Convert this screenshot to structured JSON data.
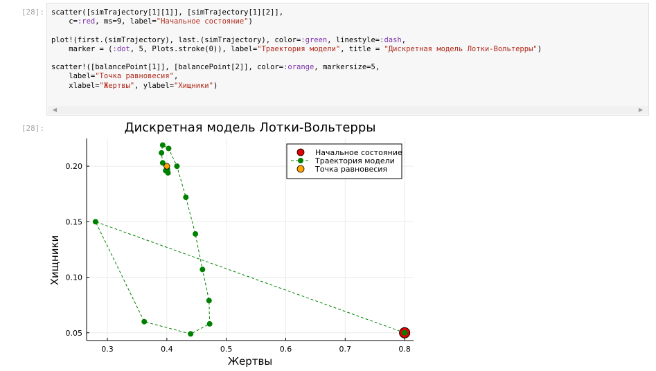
{
  "input_cell": {
    "prompt": "[28]:",
    "lines": [
      [
        {
          "t": "scatter([simTrajectory[1][1]], [simTrajectory[1][2]],"
        }
      ],
      [
        {
          "t": "    c="
        },
        {
          "t": ":red",
          "c": "sym"
        },
        {
          "t": ", ms=9, label="
        },
        {
          "t": "\"Начальное состояние\"",
          "c": "s"
        },
        {
          "t": ")"
        }
      ],
      [
        {
          "t": ""
        }
      ],
      [
        {
          "t": "plot!(first.(simTrajectory), last.(simTrajectory), color="
        },
        {
          "t": ":green",
          "c": "sym"
        },
        {
          "t": ", linestyle="
        },
        {
          "t": ":dash",
          "c": "sym"
        },
        {
          "t": ","
        }
      ],
      [
        {
          "t": "    marker = ("
        },
        {
          "t": ":dot",
          "c": "sym"
        },
        {
          "t": ", 5, Plots.stroke(0)), label="
        },
        {
          "t": "\"Траектория модели\"",
          "c": "s"
        },
        {
          "t": ", title = "
        },
        {
          "t": "\"Дискретная модель Лотки-Вольтерры\"",
          "c": "s"
        },
        {
          "t": ")"
        }
      ],
      [
        {
          "t": ""
        }
      ],
      [
        {
          "t": "scatter!([balancePoint[1]], [balancePoint[2]], color="
        },
        {
          "t": ":orange",
          "c": "sym"
        },
        {
          "t": ", markersize=5,"
        }
      ],
      [
        {
          "t": "    label="
        },
        {
          "t": "\"Точка равновесия\"",
          "c": "s"
        },
        {
          "t": ","
        }
      ],
      [
        {
          "t": "    xlabel="
        },
        {
          "t": "\"Жертвы\"",
          "c": "s"
        },
        {
          "t": ", ylabel="
        },
        {
          "t": "\"Хищники\"",
          "c": "s"
        },
        {
          "t": ")"
        }
      ]
    ]
  },
  "output_cell": {
    "prompt": "[28]:"
  },
  "scrollbar": {
    "left_icon": "triangle-left-icon",
    "right_icon": "triangle-right-icon"
  },
  "chart_data": {
    "type": "scatter",
    "title": "Дискретная модель Лотки-Вольтерры",
    "xlabel": "Жертвы",
    "ylabel": "Хищники",
    "xlim": [
      0.265,
      0.815
    ],
    "ylim": [
      0.043,
      0.225
    ],
    "xticks": [
      0.3,
      0.4,
      0.5,
      0.6,
      0.7,
      0.8
    ],
    "yticks": [
      0.05,
      0.1,
      0.15,
      0.2
    ],
    "grid": true,
    "legend_position": "top-right",
    "series": [
      {
        "name": "Начальное состояние",
        "color": "#e10000",
        "marker": "circle",
        "line": "none",
        "points": [
          [
            0.8,
            0.05
          ]
        ]
      },
      {
        "name": "Траектория модели",
        "color": "#008000",
        "marker": "dot",
        "line": "dashed",
        "points": [
          [
            0.8,
            0.05
          ],
          [
            0.28,
            0.15
          ],
          [
            0.362,
            0.06
          ],
          [
            0.44,
            0.049
          ],
          [
            0.472,
            0.058
          ],
          [
            0.471,
            0.079
          ],
          [
            0.46,
            0.107
          ],
          [
            0.448,
            0.139
          ],
          [
            0.432,
            0.172
          ],
          [
            0.417,
            0.2
          ],
          [
            0.403,
            0.216
          ],
          [
            0.393,
            0.219
          ],
          [
            0.391,
            0.212
          ],
          [
            0.393,
            0.203
          ],
          [
            0.398,
            0.196
          ],
          [
            0.402,
            0.194
          ],
          [
            0.401,
            0.197
          ],
          [
            0.4,
            0.2
          ]
        ]
      },
      {
        "name": "Точка равновесия",
        "color": "#ffa500",
        "marker": "circle",
        "line": "none",
        "points": [
          [
            0.4,
            0.2
          ]
        ]
      }
    ]
  }
}
